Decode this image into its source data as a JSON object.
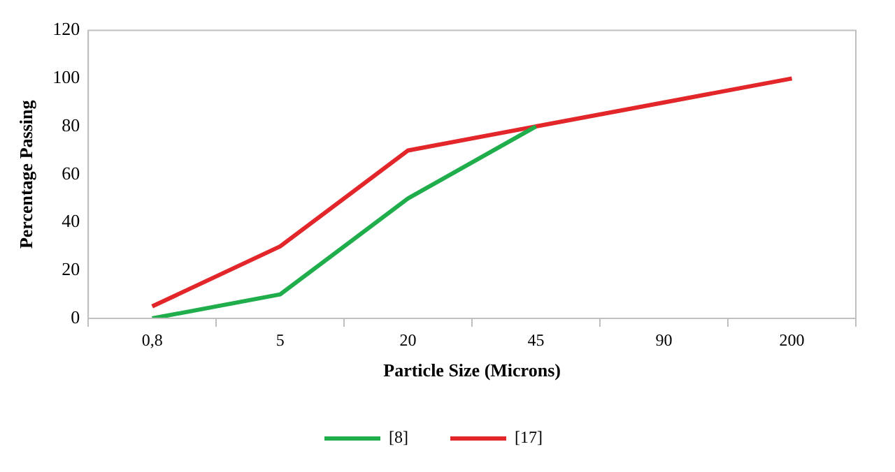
{
  "chart_data": {
    "type": "line",
    "xlabel": "Particle Size (Microns)",
    "ylabel": "Percentage Passing",
    "categories": [
      "0,8",
      "5",
      "20",
      "45",
      "90",
      "200"
    ],
    "series": [
      {
        "name": "[8]",
        "color": "#1fae4b",
        "values": [
          0,
          10,
          50,
          80,
          null,
          null
        ]
      },
      {
        "name": "[17]",
        "color": "#e2262a",
        "values": [
          5,
          30,
          70,
          80,
          90,
          100
        ]
      }
    ],
    "ylim": [
      0,
      120
    ],
    "yticks": [
      0,
      20,
      40,
      60,
      80,
      100,
      120
    ],
    "grid": false,
    "legend": "bottom",
    "marker": "none",
    "line_style": "solid"
  }
}
